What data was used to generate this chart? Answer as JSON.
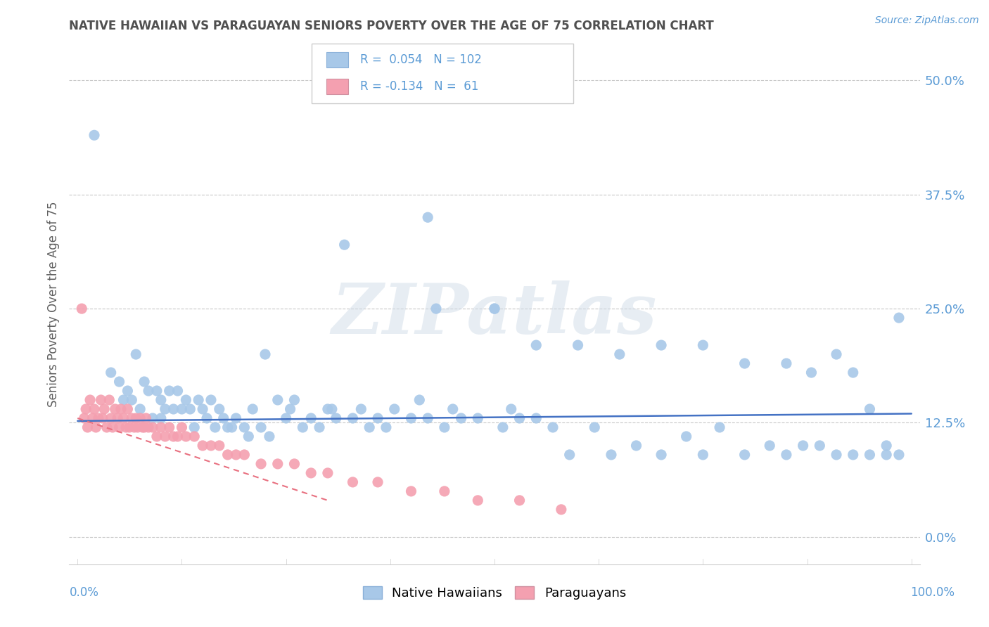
{
  "title": "NATIVE HAWAIIAN VS PARAGUAYAN SENIORS POVERTY OVER THE AGE OF 75 CORRELATION CHART",
  "source": "Source: ZipAtlas.com",
  "ylabel": "Seniors Poverty Over the Age of 75",
  "xlim": [
    -0.01,
    1.01
  ],
  "ylim": [
    -0.03,
    0.54
  ],
  "yticks": [
    0.0,
    0.125,
    0.25,
    0.375,
    0.5
  ],
  "yticklabels": [
    "0.0%",
    "12.5%",
    "25.0%",
    "37.5%",
    "50.0%"
  ],
  "x_left_label": "0.0%",
  "x_right_label": "100.0%",
  "native_hawaiian_color": "#a8c8e8",
  "paraguayan_color": "#f4a0b0",
  "native_hawaiian_line_color": "#4472c4",
  "paraguayan_line_color": "#e87080",
  "watermark": "ZIPatlas",
  "legend_label1": "Native Hawaiians",
  "legend_label2": "Paraguayans",
  "native_hawaiian_R": 0.054,
  "paraguayan_R": -0.134,
  "native_hawaiian_N": 102,
  "paraguayan_N": 61,
  "grid_color": "#c8c8c8",
  "title_color": "#505050",
  "axis_color": "#5b9bd5",
  "background_color": "#ffffff",
  "native_hawaiians_x": [
    0.02,
    0.04,
    0.05,
    0.055,
    0.06,
    0.065,
    0.07,
    0.075,
    0.08,
    0.085,
    0.09,
    0.095,
    0.1,
    0.1,
    0.105,
    0.11,
    0.115,
    0.12,
    0.125,
    0.13,
    0.135,
    0.14,
    0.145,
    0.15,
    0.155,
    0.16,
    0.165,
    0.17,
    0.175,
    0.18,
    0.185,
    0.19,
    0.2,
    0.205,
    0.21,
    0.22,
    0.225,
    0.23,
    0.24,
    0.25,
    0.255,
    0.26,
    0.27,
    0.28,
    0.29,
    0.3,
    0.305,
    0.31,
    0.32,
    0.33,
    0.34,
    0.35,
    0.36,
    0.37,
    0.38,
    0.4,
    0.41,
    0.42,
    0.43,
    0.44,
    0.45,
    0.46,
    0.48,
    0.5,
    0.51,
    0.52,
    0.53,
    0.55,
    0.57,
    0.59,
    0.42,
    0.5,
    0.55,
    0.62,
    0.64,
    0.67,
    0.7,
    0.73,
    0.75,
    0.77,
    0.8,
    0.83,
    0.85,
    0.87,
    0.89,
    0.91,
    0.93,
    0.95,
    0.97,
    0.985,
    0.6,
    0.65,
    0.7,
    0.75,
    0.8,
    0.85,
    0.88,
    0.91,
    0.93,
    0.95,
    0.97,
    0.985
  ],
  "native_hawaiians_y": [
    0.44,
    0.18,
    0.17,
    0.15,
    0.16,
    0.15,
    0.2,
    0.14,
    0.17,
    0.16,
    0.13,
    0.16,
    0.13,
    0.15,
    0.14,
    0.16,
    0.14,
    0.16,
    0.14,
    0.15,
    0.14,
    0.12,
    0.15,
    0.14,
    0.13,
    0.15,
    0.12,
    0.14,
    0.13,
    0.12,
    0.12,
    0.13,
    0.12,
    0.11,
    0.14,
    0.12,
    0.2,
    0.11,
    0.15,
    0.13,
    0.14,
    0.15,
    0.12,
    0.13,
    0.12,
    0.14,
    0.14,
    0.13,
    0.32,
    0.13,
    0.14,
    0.12,
    0.13,
    0.12,
    0.14,
    0.13,
    0.15,
    0.13,
    0.25,
    0.12,
    0.14,
    0.13,
    0.13,
    0.25,
    0.12,
    0.14,
    0.13,
    0.13,
    0.12,
    0.09,
    0.35,
    0.25,
    0.21,
    0.12,
    0.09,
    0.1,
    0.09,
    0.11,
    0.09,
    0.12,
    0.09,
    0.1,
    0.09,
    0.1,
    0.1,
    0.09,
    0.09,
    0.09,
    0.09,
    0.24,
    0.21,
    0.2,
    0.21,
    0.21,
    0.19,
    0.19,
    0.18,
    0.2,
    0.18,
    0.14,
    0.1,
    0.09
  ],
  "paraguayans_x": [
    0.005,
    0.008,
    0.01,
    0.012,
    0.015,
    0.018,
    0.02,
    0.022,
    0.025,
    0.028,
    0.03,
    0.032,
    0.035,
    0.038,
    0.04,
    0.042,
    0.045,
    0.048,
    0.05,
    0.052,
    0.055,
    0.058,
    0.06,
    0.062,
    0.065,
    0.068,
    0.07,
    0.072,
    0.075,
    0.078,
    0.08,
    0.082,
    0.085,
    0.09,
    0.095,
    0.1,
    0.105,
    0.11,
    0.115,
    0.12,
    0.125,
    0.13,
    0.14,
    0.15,
    0.16,
    0.17,
    0.18,
    0.19,
    0.2,
    0.22,
    0.24,
    0.26,
    0.28,
    0.3,
    0.33,
    0.36,
    0.4,
    0.44,
    0.48,
    0.53,
    0.58
  ],
  "paraguayans_y": [
    0.25,
    0.13,
    0.14,
    0.12,
    0.15,
    0.13,
    0.14,
    0.12,
    0.13,
    0.15,
    0.13,
    0.14,
    0.12,
    0.15,
    0.13,
    0.12,
    0.14,
    0.13,
    0.12,
    0.14,
    0.13,
    0.12,
    0.14,
    0.12,
    0.13,
    0.12,
    0.13,
    0.12,
    0.13,
    0.12,
    0.12,
    0.13,
    0.12,
    0.12,
    0.11,
    0.12,
    0.11,
    0.12,
    0.11,
    0.11,
    0.12,
    0.11,
    0.11,
    0.1,
    0.1,
    0.1,
    0.09,
    0.09,
    0.09,
    0.08,
    0.08,
    0.08,
    0.07,
    0.07,
    0.06,
    0.06,
    0.05,
    0.05,
    0.04,
    0.04,
    0.03
  ]
}
